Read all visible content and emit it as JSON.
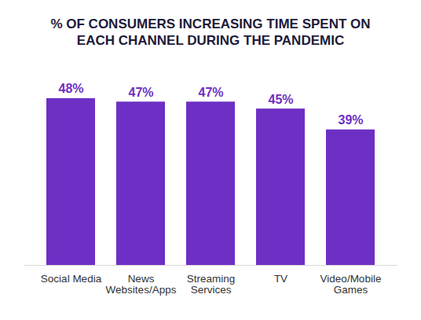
{
  "chart_data": {
    "type": "bar",
    "title": "% OF CONSUMERS INCREASING TIME SPENT ON EACH CHANNEL DURING THE PANDEMIC",
    "categories": [
      "Social Media",
      "News Websites/Apps",
      "Streaming Services",
      "TV",
      "Video/Mobile Games"
    ],
    "values": [
      48,
      47,
      47,
      45,
      39
    ],
    "value_labels": [
      "48%",
      "47%",
      "47%",
      "45%",
      "39%"
    ],
    "color": "#6d2fc4",
    "ylim": [
      0,
      50
    ],
    "data_labels": true,
    "tick_labels": "x",
    "grid": false
  }
}
